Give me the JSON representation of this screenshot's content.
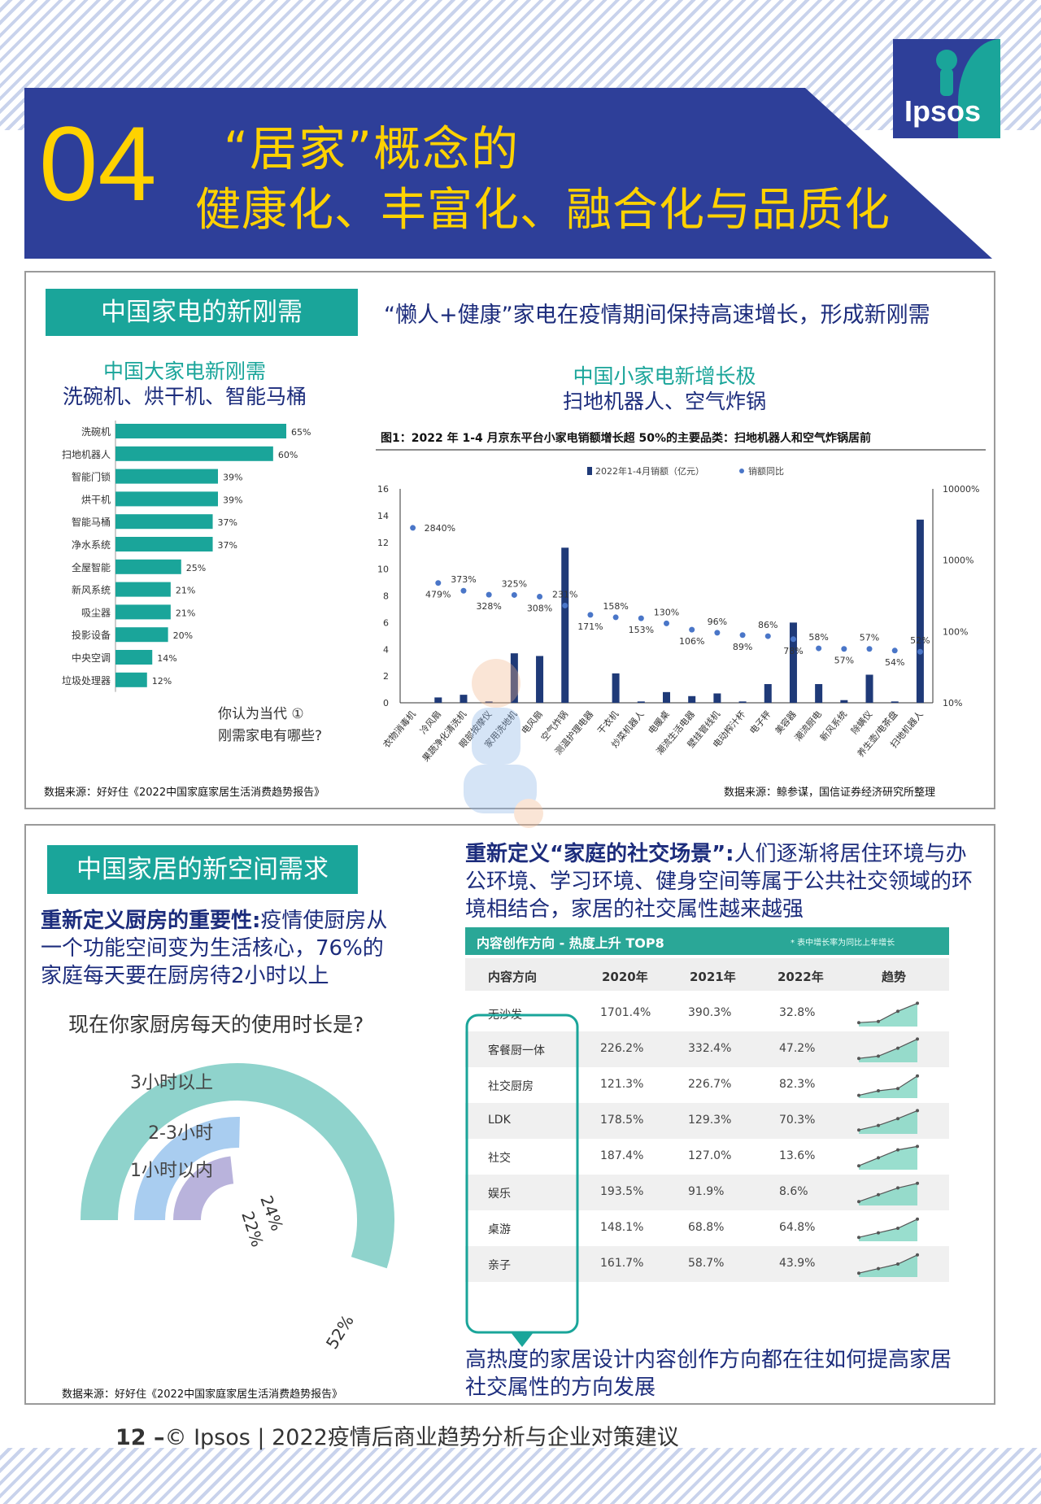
{
  "header": {
    "number": "04",
    "line1": "“居家”概念的",
    "line2": "健康化、丰富化、融合化与品质化",
    "logo_text": "Ipsos"
  },
  "colors": {
    "navy": "#2e3f99",
    "yellow": "#ffd200",
    "teal": "#1aa59a",
    "bar_teal": "#1aa59a",
    "dark_blue": "#1c2c7c"
  },
  "panel1": {
    "tag": "中国家电的新刚需",
    "headline": "“懒人+健康”家电在疫情期间保持高速增长，形成新刚需",
    "left_sub1": "中国大家电新刚需",
    "left_sub2": "洗碗机、烘干机、智能马桶",
    "right_sub1": "中国小家电新增长极",
    "right_sub2": "扫地机器人、空气炸锅",
    "question_line1": "你认为当代",
    "question_circle": "①",
    "question_line2": "刚需家电有哪些?",
    "source_left": "数据来源：好好住《2022中国家庭家居生活消费趋势报告》",
    "source_right": "数据来源：鲸参谋，国信证券经济研究所整理"
  },
  "chart_data": [
    {
      "type": "bar",
      "orientation": "horizontal",
      "categories": [
        "洗碗机",
        "扫地机器人",
        "智能门锁",
        "烘干机",
        "智能马桶",
        "净水系统",
        "全屋智能",
        "新风系统",
        "吸尘器",
        "投影设备",
        "中央空调",
        "垃圾处理器"
      ],
      "values": [
        65,
        60,
        39,
        39,
        37,
        37,
        25,
        21,
        21,
        20,
        14,
        12
      ],
      "value_labels": [
        "65%",
        "60%",
        "39%",
        "39%",
        "37%",
        "37%",
        "25%",
        "21%",
        "21%",
        "20%",
        "14%",
        "12%"
      ],
      "color": "#1aa59a"
    },
    {
      "type": "bar",
      "title": "图1：2022 年 1-4 月京东平台小家电销额增长超 50%的主要品类：扫地机器人和空气炸锅居前",
      "legend": [
        "2022年1-4月销额（亿元）",
        "销额同比"
      ],
      "categories": [
        "衣物消毒机",
        "冷风扇",
        "果蔬净化清洗机",
        "眼部按摩仪",
        "家用洗地机",
        "电风扇",
        "空气炸锅",
        "测温护理电器",
        "干衣机",
        "炒菜机器人",
        "电暖桌",
        "潮流生活电器",
        "壁挂管线机",
        "电动榨汁杯",
        "电子秤",
        "美容器",
        "潮流厨电",
        "新风系统",
        "除螨仪",
        "养生壶/电茶盘",
        "扫地机器人"
      ],
      "series": [
        {
          "name": "2022年1-4月销额（亿元）",
          "values": [
            0,
            0.4,
            0.6,
            0.1,
            3.7,
            3.5,
            11.6,
            0,
            2.2,
            0.1,
            0.8,
            0.5,
            0.7,
            0.1,
            1.4,
            6,
            1.4,
            0.2,
            2.1,
            0.1,
            13.7
          ]
        },
        {
          "name": "销额同比",
          "values": [
            2840,
            479,
            373,
            328,
            325,
            308,
            231,
            171,
            158,
            153,
            130,
            106,
            96,
            89,
            86,
            78,
            58,
            57,
            57,
            54,
            52
          ]
        }
      ],
      "point_labels": [
        "2840%",
        "479%",
        "373%",
        "328%",
        "325%",
        "308%",
        "231%",
        "171%",
        "158%",
        "153%",
        "130%",
        "106%",
        "96%",
        "89%",
        "86%",
        "78%",
        "58%",
        "57%",
        "57%",
        "54%",
        "52%"
      ],
      "y_left": {
        "range": [
          0,
          16
        ],
        "ticks": [
          "0",
          "2",
          "4",
          "6",
          "8",
          "10",
          "12",
          "14",
          "16"
        ]
      },
      "y_right": {
        "scale": "log",
        "range": [
          10,
          10000
        ],
        "ticks": [
          "10%",
          "100%",
          "1000%",
          "10000%"
        ]
      }
    },
    {
      "type": "pie",
      "style": "concentric-rings",
      "title": "现在你家厨房每天的使用时长是?",
      "categories": [
        "3小时以上",
        "2-3小时",
        "1小时以内"
      ],
      "values": [
        52,
        24,
        22
      ],
      "value_labels": [
        "52%",
        "24%",
        "22%"
      ],
      "colors": [
        "#8fd3cc",
        "#a9cdf0",
        "#b9b3dc"
      ]
    },
    {
      "type": "table",
      "title": "内容创作方向 - 热度上升 TOP8",
      "note": "* 表中增长率为同比上年增长",
      "columns": [
        "内容方向",
        "2020年",
        "2021年",
        "2022年",
        "趋势"
      ],
      "rows": [
        [
          "无沙发",
          "1701.4%",
          "390.3%",
          "32.8%"
        ],
        [
          "客餐厨一体",
          "226.2%",
          "332.4%",
          "47.2%"
        ],
        [
          "社交厨房",
          "121.3%",
          "226.7%",
          "82.3%"
        ],
        [
          "LDK",
          "178.5%",
          "129.3%",
          "70.3%"
        ],
        [
          "社交",
          "187.4%",
          "127.0%",
          "13.6%"
        ],
        [
          "娱乐",
          "193.5%",
          "91.9%",
          "8.6%"
        ],
        [
          "桌游",
          "148.1%",
          "68.8%",
          "64.8%"
        ],
        [
          "亲子",
          "161.7%",
          "58.7%",
          "43.9%"
        ]
      ]
    }
  ],
  "panel2": {
    "tag": "中国家居的新空间需求",
    "kitchen_bold": "重新定义厨房的重要性:",
    "kitchen_text": "疫情使厨房从一个功能空间变为生活核心，76%的家庭每天要在厨房待2小时以上",
    "social_bold": "重新定义“家庭的社交场景”:",
    "social_text": "人们逐渐将居住环境与办公环境、学习环境、健身空间等属于公共社交领域的环境相结合，家居的社交属性越来越强",
    "conclusion": "高热度的家居设计内容创作方向都在往如何提高家居社交属性的方向发展",
    "source": "数据来源：好好住《2022中国家庭家居生活消费趋势报告》"
  },
  "footer": {
    "page": "12 –",
    "text": "© Ipsos | 2022疫情后商业趋势分析与企业对策建议"
  }
}
